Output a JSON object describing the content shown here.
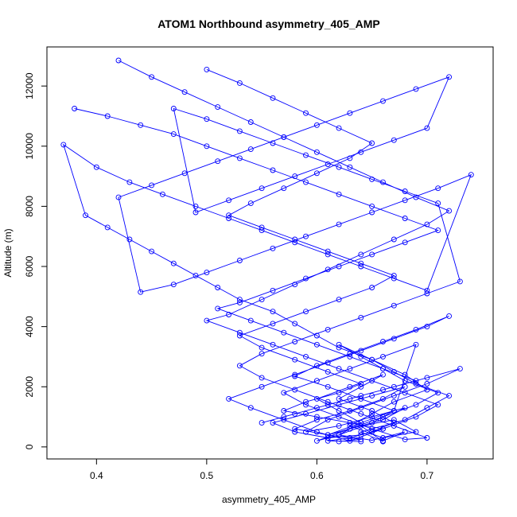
{
  "chart_data": {
    "type": "line",
    "title": "ATOM1 Northbound asymmetry_405_AMP",
    "xlabel": "asymmetry_405_AMP",
    "ylabel": "Altitude (m)",
    "xlim": [
      0.355,
      0.76
    ],
    "ylim": [
      -400,
      13300
    ],
    "x_ticks": [
      "0.4",
      "0.5",
      "0.6",
      "0.7"
    ],
    "x_tick_values": [
      0.4,
      0.5,
      0.6,
      0.7
    ],
    "y_ticks": [
      "0",
      "2000",
      "4000",
      "6000",
      "8000",
      "10000",
      "12000"
    ],
    "y_tick_values": [
      0,
      2000,
      4000,
      6000,
      8000,
      10000,
      12000
    ],
    "grid": false,
    "legend": "none",
    "line_color": "#0000ff",
    "marker": "open-circle",
    "series": [
      {
        "x": [
          0.66,
          0.64,
          0.68,
          0.7,
          0.72,
          0.69,
          0.67,
          0.65,
          0.62,
          0.6,
          0.58,
          0.56,
          0.53,
          0.51,
          0.49,
          0.47,
          0.45,
          0.43,
          0.41,
          0.39,
          0.37,
          0.4,
          0.43,
          0.46,
          0.49,
          0.52,
          0.55,
          0.58,
          0.61,
          0.64,
          0.67,
          0.7,
          0.74,
          0.71,
          0.68,
          0.65,
          0.62,
          0.59,
          0.56,
          0.53,
          0.5,
          0.47,
          0.44,
          0.42,
          0.45,
          0.48,
          0.51,
          0.54,
          0.57,
          0.6,
          0.63,
          0.66,
          0.69,
          0.72,
          0.7,
          0.67,
          0.64,
          0.61,
          0.58,
          0.55,
          0.52,
          0.49,
          0.47,
          0.5,
          0.53,
          0.56,
          0.59,
          0.62,
          0.65,
          0.68,
          0.71,
          0.73,
          0.7,
          0.67,
          0.64,
          0.61,
          0.58,
          0.55,
          0.53,
          0.55,
          0.58,
          0.61,
          0.64,
          0.67,
          0.7,
          0.68,
          0.65,
          0.62,
          0.59,
          0.57,
          0.6,
          0.63,
          0.66,
          0.69,
          0.67,
          0.64,
          0.62,
          0.65,
          0.68,
          0.66
        ],
        "y": [
          180,
          500,
          900,
          1300,
          1700,
          2100,
          2500,
          2900,
          3300,
          3700,
          4100,
          4500,
          4900,
          5300,
          5700,
          6100,
          6500,
          6900,
          7300,
          7700,
          10050,
          9300,
          8800,
          8400,
          8000,
          7600,
          7200,
          6800,
          6400,
          6000,
          5600,
          5200,
          9050,
          8600,
          8200,
          7800,
          7400,
          7000,
          6600,
          6200,
          5800,
          5400,
          5150,
          8300,
          8700,
          9100,
          9500,
          9900,
          10300,
          10700,
          11100,
          11500,
          11900,
          12300,
          10600,
          10200,
          9800,
          9400,
          9000,
          8600,
          8200,
          7800,
          11250,
          10900,
          10500,
          10100,
          9700,
          9300,
          8900,
          8500,
          8100,
          5500,
          5100,
          4700,
          4300,
          3900,
          3500,
          3100,
          2700,
          2300,
          1900,
          1500,
          1100,
          700,
          300,
          250,
          600,
          1000,
          1400,
          1800,
          2200,
          2600,
          3000,
          3400,
          1200,
          800,
          400,
          220,
          500,
          200
        ]
      },
      {
        "x": [
          0.42,
          0.45,
          0.48,
          0.51,
          0.54,
          0.57,
          0.6,
          0.63,
          0.66,
          0.69,
          0.72,
          0.7,
          0.67,
          0.64,
          0.61,
          0.58,
          0.55,
          0.52,
          0.5,
          0.53,
          0.56,
          0.59,
          0.62,
          0.65,
          0.68,
          0.71,
          0.69,
          0.66,
          0.63,
          0.6,
          0.57,
          0.54,
          0.52,
          0.55,
          0.58,
          0.61,
          0.64,
          0.67,
          0.7,
          0.72,
          0.69,
          0.66,
          0.63,
          0.6,
          0.58,
          0.61,
          0.64,
          0.67,
          0.65,
          0.62,
          0.6,
          0.63,
          0.66,
          0.69,
          0.71,
          0.68,
          0.66,
          0.64,
          0.62,
          0.65,
          0.68,
          0.7,
          0.67,
          0.65,
          0.63,
          0.66,
          0.69,
          0.67,
          0.64,
          0.66
        ],
        "y": [
          12850,
          12300,
          11800,
          11300,
          10800,
          10300,
          9800,
          9300,
          8800,
          8300,
          7850,
          7400,
          6900,
          6400,
          5900,
          5400,
          4900,
          4400,
          4200,
          3800,
          3400,
          3000,
          2600,
          2200,
          1800,
          1400,
          1000,
          600,
          200,
          500,
          900,
          1300,
          1600,
          2000,
          2400,
          2800,
          3200,
          3600,
          4000,
          4350,
          3900,
          3500,
          3100,
          2700,
          2350,
          2000,
          1600,
          1200,
          800,
          400,
          200,
          600,
          1000,
          1400,
          1800,
          2200,
          2600,
          3000,
          3400,
          2900,
          2400,
          1900,
          1500,
          1100,
          700,
          300,
          500,
          900,
          700,
          180
        ]
      },
      {
        "x": [
          0.38,
          0.41,
          0.44,
          0.47,
          0.5,
          0.53,
          0.56,
          0.59,
          0.62,
          0.65,
          0.68,
          0.71,
          0.68,
          0.65,
          0.62,
          0.59,
          0.56,
          0.53,
          0.51,
          0.54,
          0.57,
          0.6,
          0.63,
          0.66,
          0.69,
          0.66,
          0.63,
          0.6,
          0.57,
          0.55,
          0.58,
          0.61,
          0.64,
          0.67,
          0.7,
          0.73,
          0.7,
          0.67,
          0.64,
          0.61,
          0.59,
          0.62,
          0.65,
          0.68,
          0.66,
          0.63,
          0.61,
          0.64,
          0.62,
          0.6,
          0.63,
          0.66,
          0.64,
          0.62,
          0.65,
          0.67,
          0.65,
          0.63,
          0.61,
          0.64
        ],
        "y": [
          11250,
          11000,
          10700,
          10400,
          10000,
          9600,
          9200,
          8800,
          8400,
          8000,
          7600,
          7200,
          6800,
          6400,
          6000,
          5600,
          5200,
          4800,
          4600,
          4200,
          3800,
          3400,
          3000,
          2600,
          2200,
          1900,
          1600,
          1300,
          1000,
          800,
          1100,
          1400,
          1700,
          2000,
          2300,
          2600,
          2100,
          1700,
          1300,
          900,
          500,
          700,
          1000,
          1300,
          900,
          600,
          400,
          800,
          1200,
          1600,
          2000,
          2400,
          2000,
          1600,
          1200,
          800,
          500,
          300,
          200,
          180
        ]
      },
      {
        "x": [
          0.5,
          0.53,
          0.56,
          0.59,
          0.62,
          0.65,
          0.63,
          0.6,
          0.57,
          0.54,
          0.52,
          0.55,
          0.58,
          0.61,
          0.64,
          0.67,
          0.65,
          0.62,
          0.59,
          0.56,
          0.53,
          0.55,
          0.58,
          0.61,
          0.64,
          0.62,
          0.59,
          0.57,
          0.6,
          0.63,
          0.66,
          0.64,
          0.61,
          0.58,
          0.56,
          0.59,
          0.62,
          0.65,
          0.68,
          0.66,
          0.63,
          0.6,
          0.58,
          0.61,
          0.64,
          0.62
        ],
        "y": [
          12550,
          12100,
          11600,
          11100,
          10600,
          10100,
          9600,
          9100,
          8600,
          8100,
          7700,
          7300,
          6900,
          6500,
          6100,
          5700,
          5300,
          4900,
          4500,
          4100,
          3700,
          3300,
          2900,
          2500,
          2100,
          1800,
          1500,
          1200,
          1000,
          800,
          600,
          400,
          300,
          500,
          800,
          1100,
          1400,
          1700,
          2000,
          1600,
          1200,
          900,
          600,
          400,
          250,
          180
        ]
      }
    ]
  }
}
